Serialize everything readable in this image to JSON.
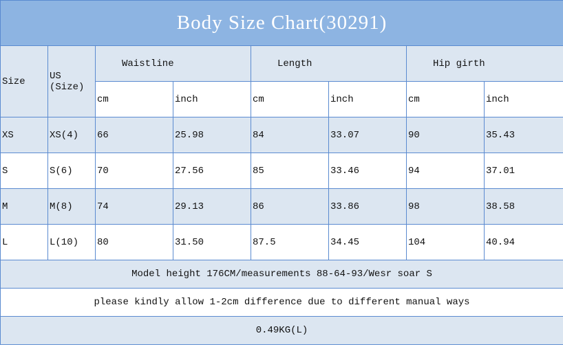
{
  "title": "Body Size Chart(30291)",
  "headers": {
    "size": "Size",
    "us_line1": "US",
    "us_line2": "(Size)",
    "groups": [
      "Waistline",
      "Length",
      "Hip girth"
    ],
    "units": [
      "cm",
      "inch",
      "cm",
      "inch",
      "cm",
      "inch"
    ]
  },
  "rows": [
    {
      "size": "XS",
      "us": "XS(4)",
      "values": [
        "66",
        "25.98",
        "84",
        "33.07",
        "90",
        "35.43"
      ]
    },
    {
      "size": "S",
      "us": "S(6)",
      "values": [
        "70",
        "27.56",
        "85",
        "33.46",
        "94",
        "37.01"
      ]
    },
    {
      "size": "M",
      "us": "M(8)",
      "values": [
        "74",
        "29.13",
        "86",
        "33.86",
        "98",
        "38.58"
      ]
    },
    {
      "size": "L",
      "us": "L(10)",
      "values": [
        "80",
        "31.50",
        "87.5",
        "34.45",
        "104",
        "40.94"
      ]
    }
  ],
  "footer": [
    "Model height 176CM/measurements 88-64-93/Wesr soar S",
    "please kindly allow 1-2cm difference due to different manual ways",
    "0.49KG(L)"
  ],
  "colors": {
    "title_bg": "#8db4e2",
    "light_row": "#dce6f1",
    "grid": "#5a8ad0"
  }
}
